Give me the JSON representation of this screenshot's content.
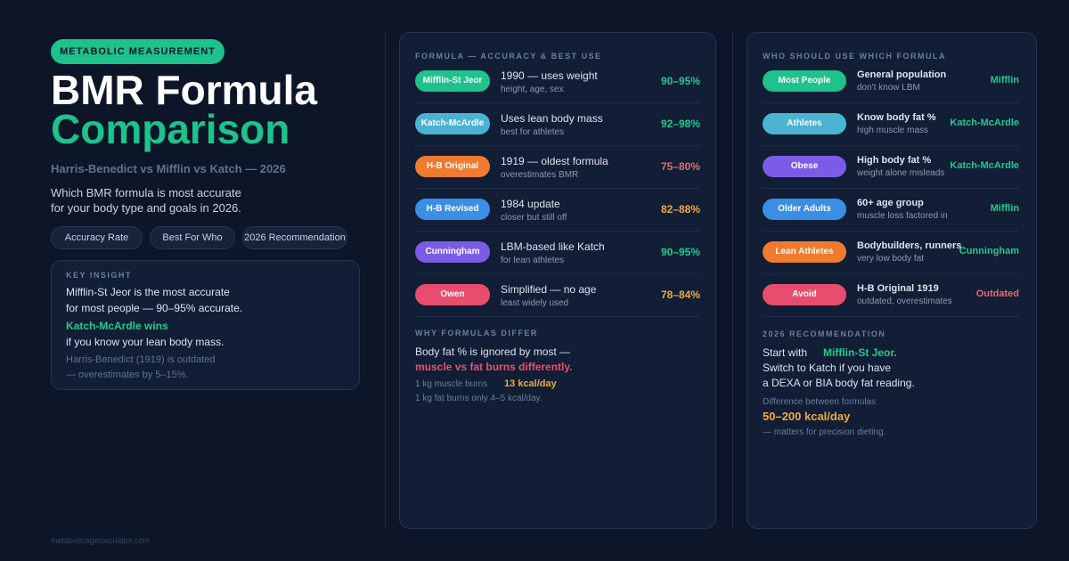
{
  "header": {
    "badge": "METABOLIC MEASUREMENT",
    "title_line1": "BMR Formula",
    "title_line2": "Comparison",
    "subtitle": "Harris-Benedict vs Mifflin vs Katch — 2026",
    "description_line1": "Which BMR formula is most accurate",
    "description_line2": "for your body type and goals in 2026."
  },
  "tabs": [
    "Accuracy Rate",
    "Best For Who",
    "2026 Recommendation"
  ],
  "key_insight": {
    "label": "KEY INSIGHT",
    "line1": "Mifflin-St Jeor is the most accurate",
    "line2": "for most people — 90–95% accurate.",
    "highlight": "Katch-McArdle wins",
    "line3": "if you know your lean body mass.",
    "note1": "Harris-Benedict (1919) is outdated",
    "note2": "— overestimates by 5–15%."
  },
  "formulas": {
    "heading": "FORMULA — ACCURACY & BEST USE",
    "rows": [
      {
        "name": "Mifflin-St Jeor",
        "desc": "1990 — uses weight",
        "sub": "height, age, sex",
        "accuracy": "90–95%"
      },
      {
        "name": "Katch-McArdle",
        "desc": "Uses lean body mass",
        "sub": "best for athletes",
        "accuracy": "92–98%"
      },
      {
        "name": "H-B Original",
        "desc": "1919 — oldest formula",
        "sub": "overestimates BMR",
        "accuracy": "75–80%"
      },
      {
        "name": "H-B Revised",
        "desc": "1984 update",
        "sub": "closer but still off",
        "accuracy": "82–88%"
      },
      {
        "name": "Cunningham",
        "desc": "LBM-based like Katch",
        "sub": "for lean athletes",
        "accuracy": "90–95%"
      },
      {
        "name": "Owen",
        "desc": "Simplified — no age",
        "sub": "least widely used",
        "accuracy": "78–84%"
      }
    ]
  },
  "why": {
    "heading": "WHY FORMULAS DIFFER",
    "line1": "Body fat % is ignored by most —",
    "highlight": "muscle vs fat burns differently.",
    "muscle_label": "1 kg muscle burns",
    "muscle_value": "13 kcal/day",
    "fat_line": "1 kg fat burns only 4–5 kcal/day."
  },
  "who": {
    "heading": "WHO SHOULD USE WHICH FORMULA",
    "rows": [
      {
        "group": "Most People",
        "desc": "General population",
        "sub": "don't know LBM",
        "formula": "Mifflin"
      },
      {
        "group": "Athletes",
        "desc": "Know body fat %",
        "sub": "high muscle mass",
        "formula": "Katch-McArdle"
      },
      {
        "group": "Obese",
        "desc": "High body fat %",
        "sub": "weight alone misleads",
        "formula": "Katch-McArdle"
      },
      {
        "group": "Older Adults",
        "desc": "60+ age group",
        "sub": "muscle loss factored in",
        "formula": "Mifflin"
      },
      {
        "group": "Lean Athletes",
        "desc": "Bodybuilders, runners",
        "sub": "very low body fat",
        "formula": "Cunningham"
      },
      {
        "group": "Avoid",
        "desc": "H-B Original 1919",
        "sub": "outdated, overestimates",
        "formula": "Outdated"
      }
    ]
  },
  "recommendation": {
    "heading": "2026 RECOMMENDATION",
    "start": "Start with",
    "formula": "Mifflin-St Jeor.",
    "line2": "Switch to Katch if you have",
    "line3": "a DEXA or BIA body fat reading.",
    "diff_label": "Difference between formulas",
    "diff_value": "50–200 kcal/day",
    "diff_note": "— matters for precision dieting."
  },
  "footer": "metabolicagecalculator.com"
}
